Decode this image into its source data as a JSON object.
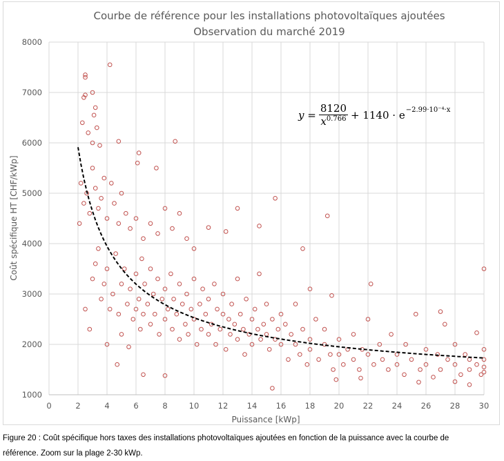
{
  "chart_data": {
    "type": "scatter",
    "title": [
      "Courbe de référence pour les installations photovoltaïques ajoutées",
      "Observation du marché 2019"
    ],
    "xlabel": "Puissance [kWp]",
    "ylabel": "Coût spécifique HT [CHF/kWp]",
    "xlim": [
      0,
      30
    ],
    "ylim": [
      1000,
      8000
    ],
    "xticks": [
      "0",
      "2",
      "4",
      "6",
      "8",
      "10",
      "12",
      "14",
      "16",
      "18",
      "20",
      "22",
      "24",
      "26",
      "28",
      "30"
    ],
    "yticks": [
      "1000",
      "2000",
      "3000",
      "4000",
      "5000",
      "6000",
      "7000",
      "8000"
    ],
    "grid": true,
    "marker_color": "#c0504d",
    "marker": "open-circle",
    "fit_curve": {
      "style": "dashed",
      "color": "#000000",
      "a": 8120,
      "b": 0.766,
      "c": 1140,
      "k": 0.000299,
      "x_range": [
        2,
        30
      ]
    },
    "equation": {
      "lhs": "y =",
      "numerator": "8120",
      "denominator_base": "x",
      "denominator_exp": "0.766",
      "rest": "+ 1140 · e",
      "exp": "−2.99·10⁻⁴·x"
    },
    "points": [
      [
        4.2,
        7550
      ],
      [
        2.5,
        7350
      ],
      [
        2.5,
        7300
      ],
      [
        2.5,
        6950
      ],
      [
        3,
        7000
      ],
      [
        2.4,
        6900
      ],
      [
        3.2,
        6700
      ],
      [
        3.1,
        6550
      ],
      [
        3.3,
        6300
      ],
      [
        2.3,
        6400
      ],
      [
        2.7,
        6200
      ],
      [
        3,
        6000
      ],
      [
        3.5,
        5950
      ],
      [
        4.8,
        6030
      ],
      [
        6.2,
        5800
      ],
      [
        8.7,
        6030
      ],
      [
        7.4,
        5500
      ],
      [
        6.1,
        5600
      ],
      [
        15.6,
        4900
      ],
      [
        19.2,
        4550
      ],
      [
        30,
        3500
      ],
      [
        13,
        4700
      ],
      [
        11,
        4320
      ],
      [
        14.5,
        4350
      ],
      [
        17.5,
        3900
      ],
      [
        12.2,
        4240
      ],
      [
        22.2,
        3200
      ],
      [
        19.5,
        2970
      ],
      [
        18,
        3100
      ],
      [
        27,
        2650
      ],
      [
        29.5,
        2230
      ],
      [
        15.4,
        1130
      ],
      [
        6.5,
        1400
      ],
      [
        8,
        1380
      ],
      [
        4.7,
        1600
      ],
      [
        25.5,
        1250
      ],
      [
        29,
        1200
      ],
      [
        28,
        1260
      ],
      [
        19.8,
        1300
      ],
      [
        21.5,
        1330
      ],
      [
        2.1,
        4400
      ],
      [
        2.2,
        5200
      ],
      [
        2.4,
        4800
      ],
      [
        2.6,
        5000
      ],
      [
        2.8,
        4600
      ],
      [
        3,
        5500
      ],
      [
        3.2,
        5100
      ],
      [
        3.4,
        4700
      ],
      [
        3.6,
        4900
      ],
      [
        3.8,
        5300
      ],
      [
        4,
        4500
      ],
      [
        4.3,
        5200
      ],
      [
        4.5,
        4800
      ],
      [
        4.8,
        4400
      ],
      [
        5,
        5000
      ],
      [
        5.3,
        4600
      ],
      [
        5.6,
        4300
      ],
      [
        6,
        4500
      ],
      [
        6.5,
        4100
      ],
      [
        7,
        4400
      ],
      [
        7.5,
        4200
      ],
      [
        8,
        4700
      ],
      [
        8.5,
        4300
      ],
      [
        9,
        4600
      ],
      [
        9.5,
        4100
      ],
      [
        10,
        3900
      ],
      [
        2.5,
        2700
      ],
      [
        2.8,
        2300
      ],
      [
        3,
        3300
      ],
      [
        3.2,
        3600
      ],
      [
        3.4,
        3900
      ],
      [
        3.6,
        2900
      ],
      [
        3.8,
        3200
      ],
      [
        4,
        2000
      ],
      [
        4,
        3500
      ],
      [
        4.2,
        2700
      ],
      [
        4.4,
        3000
      ],
      [
        4.6,
        3800
      ],
      [
        4.8,
        2600
      ],
      [
        5,
        3200
      ],
      [
        5,
        2200
      ],
      [
        5.2,
        3500
      ],
      [
        5.4,
        2800
      ],
      [
        5.5,
        1950
      ],
      [
        5.6,
        3100
      ],
      [
        5.8,
        2500
      ],
      [
        6,
        3400
      ],
      [
        6,
        2700
      ],
      [
        6.2,
        2900
      ],
      [
        6.3,
        2300
      ],
      [
        6.4,
        3700
      ],
      [
        6.5,
        2600
      ],
      [
        6.6,
        3200
      ],
      [
        6.8,
        2800
      ],
      [
        7,
        3500
      ],
      [
        7,
        2400
      ],
      [
        7.2,
        3000
      ],
      [
        7.3,
        2600
      ],
      [
        7.5,
        3300
      ],
      [
        7.6,
        2200
      ],
      [
        7.8,
        2900
      ],
      [
        8,
        2500
      ],
      [
        8,
        3100
      ],
      [
        8.2,
        2700
      ],
      [
        8.4,
        3400
      ],
      [
        8.5,
        2300
      ],
      [
        8.6,
        2900
      ],
      [
        8.8,
        2600
      ],
      [
        9,
        3200
      ],
      [
        9,
        2100
      ],
      [
        9.2,
        2800
      ],
      [
        9.4,
        2400
      ],
      [
        9.5,
        3000
      ],
      [
        9.6,
        2200
      ],
      [
        9.8,
        2700
      ],
      [
        10,
        2500
      ],
      [
        10,
        3300
      ],
      [
        10.2,
        2000
      ],
      [
        10.4,
        2800
      ],
      [
        10.5,
        2300
      ],
      [
        10.6,
        3100
      ],
      [
        10.8,
        2600
      ],
      [
        11,
        2200
      ],
      [
        11,
        2900
      ],
      [
        11.2,
        2400
      ],
      [
        11.4,
        3200
      ],
      [
        11.5,
        2000
      ],
      [
        11.6,
        2700
      ],
      [
        11.8,
        2300
      ],
      [
        12,
        2600
      ],
      [
        12,
        3000
      ],
      [
        12.2,
        1900
      ],
      [
        12.4,
        2500
      ],
      [
        12.5,
        2200
      ],
      [
        12.6,
        2800
      ],
      [
        12.8,
        2400
      ],
      [
        13,
        2100
      ],
      [
        13,
        3300
      ],
      [
        13.2,
        2600
      ],
      [
        13.4,
        2300
      ],
      [
        13.5,
        1800
      ],
      [
        13.6,
        2900
      ],
      [
        13.8,
        2200
      ],
      [
        14,
        2500
      ],
      [
        14,
        2000
      ],
      [
        14.2,
        2700
      ],
      [
        14.4,
        2300
      ],
      [
        14.5,
        3400
      ],
      [
        14.6,
        2100
      ],
      [
        14.8,
        2400
      ],
      [
        15,
        2200
      ],
      [
        15,
        2800
      ],
      [
        15.2,
        1900
      ],
      [
        15.4,
        2500
      ],
      [
        15.6,
        2100
      ],
      [
        15.8,
        2300
      ],
      [
        16,
        2000
      ],
      [
        16,
        2600
      ],
      [
        16.3,
        2400
      ],
      [
        16.5,
        1700
      ],
      [
        16.7,
        2200
      ],
      [
        17,
        2000
      ],
      [
        17,
        2800
      ],
      [
        17.3,
        1800
      ],
      [
        17.5,
        2300
      ],
      [
        17.8,
        1600
      ],
      [
        18,
        2100
      ],
      [
        18,
        1900
      ],
      [
        18.4,
        2500
      ],
      [
        18.6,
        1700
      ],
      [
        19,
        2000
      ],
      [
        19,
        2300
      ],
      [
        19.4,
        1800
      ],
      [
        19.6,
        1500
      ],
      [
        20,
        2100
      ],
      [
        20,
        1800
      ],
      [
        20.3,
        1600
      ],
      [
        20.6,
        1900
      ],
      [
        21,
        2200
      ],
      [
        21,
        1700
      ],
      [
        21.4,
        1500
      ],
      [
        21.6,
        1900
      ],
      [
        22,
        1800
      ],
      [
        22,
        2500
      ],
      [
        22.4,
        1600
      ],
      [
        22.8,
        2000
      ],
      [
        23,
        1700
      ],
      [
        23.4,
        1500
      ],
      [
        23.6,
        2200
      ],
      [
        24,
        1800
      ],
      [
        24,
        1600
      ],
      [
        24.5,
        1400
      ],
      [
        24.6,
        2000
      ],
      [
        25,
        1700
      ],
      [
        25.3,
        2600
      ],
      [
        25.6,
        1500
      ],
      [
        26,
        1900
      ],
      [
        26,
        1600
      ],
      [
        26.5,
        1350
      ],
      [
        26.8,
        1800
      ],
      [
        27,
        1500
      ],
      [
        27.3,
        2400
      ],
      [
        27.5,
        1700
      ],
      [
        28,
        1600
      ],
      [
        28,
        2000
      ],
      [
        28.4,
        1400
      ],
      [
        28.7,
        1800
      ],
      [
        29,
        1500
      ],
      [
        29,
        1700
      ],
      [
        29.5,
        1600
      ],
      [
        29.8,
        1400
      ],
      [
        30,
        1450
      ],
      [
        30,
        1700
      ],
      [
        30,
        1900
      ],
      [
        30,
        1550
      ]
    ]
  },
  "caption": {
    "line1": "Figure 20  : Coût spécifique hors taxes des installations photovoltaïques ajoutées en fonction de la puissance avec la courbe de",
    "line2": "référence. Zoom sur la plage 2-30 kWp."
  }
}
